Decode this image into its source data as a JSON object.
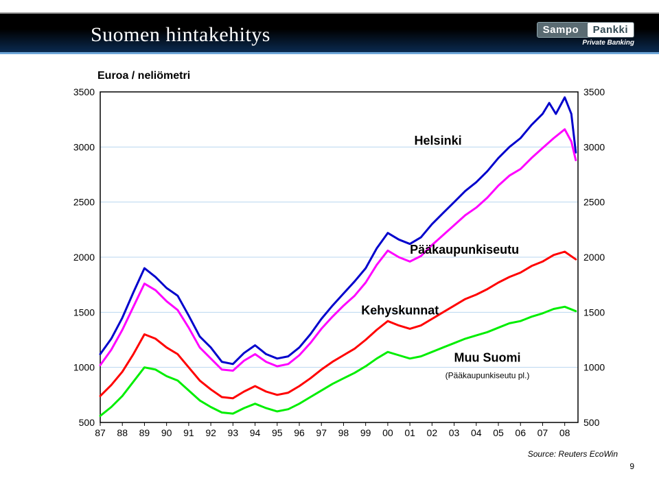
{
  "slide": {
    "title": "Suomen hintakehitys",
    "logo_left": "Sampo",
    "logo_right": "Pankki",
    "logo_sub": "Private Banking",
    "page_number": "9",
    "source": "Source: Reuters EcoWin"
  },
  "chart": {
    "type": "line",
    "subtitle": "Euroa / neliömetri",
    "background_color": "#ffffff",
    "grid_color": "#b8d6ef",
    "axis_color": "#000000",
    "ylim": [
      500,
      3500
    ],
    "ytick_step": 500,
    "y_ticks": [
      500,
      1000,
      1500,
      2000,
      2500,
      3000,
      3500
    ],
    "xlim": [
      1987,
      2008
    ],
    "x_ticks": [
      87,
      88,
      89,
      90,
      91,
      92,
      93,
      94,
      95,
      96,
      97,
      98,
      99,
      "00",
      "01",
      "02",
      "03",
      "04",
      "05",
      "06",
      "07",
      "08"
    ],
    "line_width": 3,
    "series": [
      {
        "name": "Helsinki",
        "label": "Helsinki",
        "color": "#0000cc",
        "label_pos": {
          "x": 2001.2,
          "y": 3020
        },
        "data": [
          [
            1987,
            1120
          ],
          [
            1987.5,
            1260
          ],
          [
            1988,
            1450
          ],
          [
            1988.5,
            1680
          ],
          [
            1989,
            1900
          ],
          [
            1989.5,
            1820
          ],
          [
            1990,
            1720
          ],
          [
            1990.5,
            1650
          ],
          [
            1991,
            1470
          ],
          [
            1991.5,
            1280
          ],
          [
            1992,
            1180
          ],
          [
            1992.5,
            1050
          ],
          [
            1993,
            1030
          ],
          [
            1993.5,
            1130
          ],
          [
            1994,
            1200
          ],
          [
            1994.5,
            1120
          ],
          [
            1995,
            1080
          ],
          [
            1995.5,
            1100
          ],
          [
            1996,
            1180
          ],
          [
            1996.5,
            1300
          ],
          [
            1997,
            1440
          ],
          [
            1997.5,
            1560
          ],
          [
            1998,
            1670
          ],
          [
            1998.5,
            1780
          ],
          [
            1999,
            1900
          ],
          [
            1999.5,
            2080
          ],
          [
            2000,
            2220
          ],
          [
            2000.5,
            2160
          ],
          [
            2001,
            2120
          ],
          [
            2001.5,
            2180
          ],
          [
            2002,
            2300
          ],
          [
            2002.5,
            2400
          ],
          [
            2003,
            2500
          ],
          [
            2003.5,
            2600
          ],
          [
            2004,
            2680
          ],
          [
            2004.5,
            2780
          ],
          [
            2005,
            2900
          ],
          [
            2005.5,
            3000
          ],
          [
            2006,
            3080
          ],
          [
            2006.5,
            3200
          ],
          [
            2007,
            3300
          ],
          [
            2007.3,
            3400
          ],
          [
            2007.6,
            3300
          ],
          [
            2008,
            3450
          ],
          [
            2008.3,
            3300
          ],
          [
            2008.5,
            2950
          ]
        ]
      },
      {
        "name": "Paakaupunkiseutu",
        "label": "Pääkaupunkiseutu",
        "color": "#ff00ff",
        "label_pos": {
          "x": 2001,
          "y": 2030
        },
        "data": [
          [
            1987,
            1020
          ],
          [
            1987.5,
            1160
          ],
          [
            1988,
            1340
          ],
          [
            1988.5,
            1550
          ],
          [
            1989,
            1760
          ],
          [
            1989.5,
            1700
          ],
          [
            1990,
            1600
          ],
          [
            1990.5,
            1520
          ],
          [
            1991,
            1360
          ],
          [
            1991.5,
            1180
          ],
          [
            1992,
            1080
          ],
          [
            1992.5,
            980
          ],
          [
            1993,
            970
          ],
          [
            1993.5,
            1060
          ],
          [
            1994,
            1120
          ],
          [
            1994.5,
            1050
          ],
          [
            1995,
            1010
          ],
          [
            1995.5,
            1030
          ],
          [
            1996,
            1110
          ],
          [
            1996.5,
            1220
          ],
          [
            1997,
            1350
          ],
          [
            1997.5,
            1460
          ],
          [
            1998,
            1560
          ],
          [
            1998.5,
            1650
          ],
          [
            1999,
            1770
          ],
          [
            1999.5,
            1930
          ],
          [
            2000,
            2060
          ],
          [
            2000.5,
            2000
          ],
          [
            2001,
            1960
          ],
          [
            2001.5,
            2010
          ],
          [
            2002,
            2110
          ],
          [
            2002.5,
            2200
          ],
          [
            2003,
            2290
          ],
          [
            2003.5,
            2380
          ],
          [
            2004,
            2450
          ],
          [
            2004.5,
            2540
          ],
          [
            2005,
            2650
          ],
          [
            2005.5,
            2740
          ],
          [
            2006,
            2800
          ],
          [
            2006.5,
            2900
          ],
          [
            2007,
            2990
          ],
          [
            2007.5,
            3080
          ],
          [
            2008,
            3160
          ],
          [
            2008.3,
            3050
          ],
          [
            2008.5,
            2880
          ]
        ]
      },
      {
        "name": "Kehyskunnat",
        "label": "Kehyskunnat",
        "color": "#ff0000",
        "label_pos": {
          "x": 1998.8,
          "y": 1480
        },
        "data": [
          [
            1987,
            740
          ],
          [
            1987.5,
            840
          ],
          [
            1988,
            960
          ],
          [
            1988.5,
            1120
          ],
          [
            1989,
            1300
          ],
          [
            1989.5,
            1260
          ],
          [
            1990,
            1180
          ],
          [
            1990.5,
            1120
          ],
          [
            1991,
            1000
          ],
          [
            1991.5,
            880
          ],
          [
            1992,
            800
          ],
          [
            1992.5,
            730
          ],
          [
            1993,
            720
          ],
          [
            1993.5,
            780
          ],
          [
            1994,
            830
          ],
          [
            1994.5,
            780
          ],
          [
            1995,
            750
          ],
          [
            1995.5,
            770
          ],
          [
            1996,
            830
          ],
          [
            1996.5,
            900
          ],
          [
            1997,
            980
          ],
          [
            1997.5,
            1050
          ],
          [
            1998,
            1110
          ],
          [
            1998.5,
            1170
          ],
          [
            1999,
            1250
          ],
          [
            1999.5,
            1340
          ],
          [
            2000,
            1420
          ],
          [
            2000.5,
            1380
          ],
          [
            2001,
            1350
          ],
          [
            2001.5,
            1380
          ],
          [
            2002,
            1440
          ],
          [
            2002.5,
            1500
          ],
          [
            2003,
            1560
          ],
          [
            2003.5,
            1620
          ],
          [
            2004,
            1660
          ],
          [
            2004.5,
            1710
          ],
          [
            2005,
            1770
          ],
          [
            2005.5,
            1820
          ],
          [
            2006,
            1860
          ],
          [
            2006.5,
            1920
          ],
          [
            2007,
            1960
          ],
          [
            2007.5,
            2020
          ],
          [
            2008,
            2050
          ],
          [
            2008.5,
            1980
          ]
        ]
      },
      {
        "name": "MuuSuomi",
        "label": "Muu Suomi",
        "sublabel": "(Pääkaupunkiseutu pl.)",
        "color": "#00ee00",
        "label_pos": {
          "x": 2003,
          "y": 1050
        },
        "sublabel_pos": {
          "x": 2002.6,
          "y": 900
        },
        "data": [
          [
            1987,
            560
          ],
          [
            1987.5,
            640
          ],
          [
            1988,
            740
          ],
          [
            1988.5,
            870
          ],
          [
            1989,
            1000
          ],
          [
            1989.5,
            980
          ],
          [
            1990,
            920
          ],
          [
            1990.5,
            880
          ],
          [
            1991,
            790
          ],
          [
            1991.5,
            700
          ],
          [
            1992,
            640
          ],
          [
            1992.5,
            590
          ],
          [
            1993,
            580
          ],
          [
            1993.5,
            630
          ],
          [
            1994,
            670
          ],
          [
            1994.5,
            630
          ],
          [
            1995,
            600
          ],
          [
            1995.5,
            620
          ],
          [
            1996,
            670
          ],
          [
            1996.5,
            730
          ],
          [
            1997,
            790
          ],
          [
            1997.5,
            850
          ],
          [
            1998,
            900
          ],
          [
            1998.5,
            950
          ],
          [
            1999,
            1010
          ],
          [
            1999.5,
            1080
          ],
          [
            2000,
            1140
          ],
          [
            2000.5,
            1110
          ],
          [
            2001,
            1080
          ],
          [
            2001.5,
            1100
          ],
          [
            2002,
            1140
          ],
          [
            2002.5,
            1180
          ],
          [
            2003,
            1220
          ],
          [
            2003.5,
            1260
          ],
          [
            2004,
            1290
          ],
          [
            2004.5,
            1320
          ],
          [
            2005,
            1360
          ],
          [
            2005.5,
            1400
          ],
          [
            2006,
            1420
          ],
          [
            2006.5,
            1460
          ],
          [
            2007,
            1490
          ],
          [
            2007.5,
            1530
          ],
          [
            2008,
            1550
          ],
          [
            2008.5,
            1510
          ]
        ]
      }
    ]
  }
}
